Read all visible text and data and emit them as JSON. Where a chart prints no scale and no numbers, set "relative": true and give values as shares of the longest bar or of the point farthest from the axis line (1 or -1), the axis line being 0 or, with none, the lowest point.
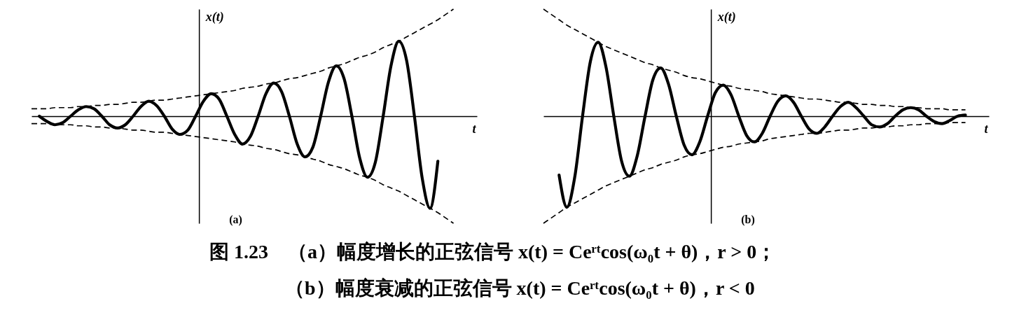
{
  "chart_data": [
    {
      "type": "line",
      "title": "(a)",
      "xlabel": "t",
      "ylabel": "x(t)",
      "relative": true,
      "categories": [
        null,
        null,
        null,
        null,
        null,
        null,
        null,
        null,
        null,
        null,
        null,
        null,
        null,
        null,
        null,
        null,
        null,
        null,
        null,
        null,
        null,
        null,
        null,
        null,
        null,
        null,
        null,
        null,
        null,
        null,
        null,
        null,
        null,
        null,
        null,
        null,
        null,
        null,
        null,
        null,
        null,
        null,
        null,
        null,
        null,
        null,
        null,
        null,
        null,
        null,
        null,
        null,
        null,
        null,
        null,
        null,
        null,
        null
      ],
      "series": [
        {
          "color": "#000000",
          "line_style": "solid",
          "values": [
            null,
            0,
            -0.05,
            -0.08,
            -0.06,
            0,
            0.06,
            0.09,
            0.07,
            0,
            -0.08,
            -0.11,
            -0.08,
            0,
            0.09,
            0.14,
            0.1,
            0,
            -0.12,
            -0.17,
            -0.13,
            0,
            0.14,
            0.21,
            0.16,
            0,
            -0.17,
            -0.26,
            -0.19,
            0,
            0.21,
            0.31,
            0.23,
            0,
            -0.26,
            -0.38,
            -0.29,
            0,
            0.32,
            0.47,
            0.35,
            0,
            -0.39,
            -0.57,
            -0.43,
            0,
            0.47,
            0.7,
            0.52,
            0,
            -0.58,
            -0.86,
            -0.42,
            null,
            null,
            null,
            null,
            null
          ]
        },
        {
          "color": "#000000",
          "line_style": "dashed",
          "values": [
            0.07,
            0.07,
            0.07,
            0.08,
            0.08,
            0.08,
            0.09,
            0.09,
            0.1,
            0.1,
            0.11,
            0.11,
            0.12,
            0.13,
            0.13,
            0.14,
            0.15,
            0.15,
            0.16,
            0.17,
            0.18,
            0.19,
            0.2,
            0.21,
            0.22,
            0.23,
            0.24,
            0.26,
            0.27,
            0.28,
            0.3,
            0.31,
            0.33,
            0.35,
            0.36,
            0.38,
            0.4,
            0.42,
            0.45,
            0.47,
            0.49,
            0.52,
            0.55,
            0.57,
            0.6,
            0.64,
            0.67,
            0.7,
            0.74,
            0.78,
            0.82,
            0.86,
            0.9,
            0.95,
            1,
            null,
            null,
            null
          ]
        },
        {
          "color": "#000000",
          "line_style": "dashed",
          "values": [
            -0.07,
            -0.07,
            -0.07,
            -0.08,
            -0.08,
            -0.08,
            -0.09,
            -0.09,
            -0.1,
            -0.1,
            -0.11,
            -0.11,
            -0.12,
            -0.13,
            -0.13,
            -0.14,
            -0.15,
            -0.15,
            -0.16,
            -0.17,
            -0.18,
            -0.19,
            -0.2,
            -0.21,
            -0.22,
            -0.23,
            -0.24,
            -0.26,
            -0.27,
            -0.28,
            -0.3,
            -0.31,
            -0.33,
            -0.35,
            -0.36,
            -0.38,
            -0.4,
            -0.42,
            -0.45,
            -0.47,
            -0.49,
            -0.52,
            -0.55,
            -0.57,
            -0.6,
            -0.64,
            -0.67,
            -0.7,
            -0.74,
            -0.78,
            -0.82,
            -0.86,
            -0.9,
            -0.95,
            -1,
            null,
            null,
            null
          ]
        }
      ]
    },
    {
      "type": "line",
      "title": "(b)",
      "xlabel": "t",
      "ylabel": "x(t)",
      "relative": true,
      "categories": [
        null,
        null,
        null,
        null,
        null,
        null,
        null,
        null,
        null,
        null,
        null,
        null,
        null,
        null,
        null,
        null,
        null,
        null,
        null,
        null,
        null,
        null,
        null,
        null,
        null,
        null,
        null,
        null,
        null,
        null,
        null,
        null,
        null,
        null,
        null,
        null,
        null,
        null,
        null,
        null,
        null,
        null,
        null,
        null,
        null,
        null,
        null,
        null,
        null,
        null,
        null,
        null,
        null,
        null,
        null,
        null,
        null,
        null
      ],
      "series": [
        {
          "color": "#000000",
          "line_style": "solid",
          "values": [
            null,
            null,
            -0.55,
            -0.85,
            -0.57,
            0,
            0.51,
            0.69,
            0.46,
            0,
            -0.42,
            -0.56,
            -0.37,
            0,
            0.34,
            0.45,
            0.3,
            0,
            -0.27,
            -0.36,
            -0.24,
            0,
            0.22,
            0.29,
            0.2,
            0,
            -0.18,
            -0.24,
            -0.16,
            0,
            0.14,
            0.19,
            0.13,
            0,
            -0.12,
            -0.16,
            -0.1,
            0,
            0.09,
            0.13,
            0.08,
            0,
            -0.08,
            -0.1,
            -0.07,
            0,
            0.06,
            0.08,
            0.06,
            0,
            -0.05,
            -0.07,
            -0.04,
            0,
            0.01,
            null,
            null,
            null
          ]
        },
        {
          "color": "#000000",
          "line_style": "dashed",
          "values": [
            1,
            0.95,
            0.9,
            0.85,
            0.81,
            0.77,
            0.73,
            0.69,
            0.65,
            0.62,
            0.59,
            0.56,
            0.53,
            0.5,
            0.48,
            0.45,
            0.43,
            0.41,
            0.38,
            0.36,
            0.35,
            0.33,
            0.31,
            0.29,
            0.28,
            0.26,
            0.25,
            0.24,
            0.23,
            0.21,
            0.2,
            0.19,
            0.18,
            0.17,
            0.16,
            0.16,
            0.15,
            0.14,
            0.13,
            0.13,
            0.12,
            0.11,
            0.11,
            0.1,
            0.1,
            0.09,
            0.09,
            0.08,
            0.08,
            0.07,
            0.07,
            0.07,
            0.06,
            0.06,
            0.06,
            null,
            null,
            null
          ]
        },
        {
          "color": "#000000",
          "line_style": "dashed",
          "values": [
            -1,
            -0.95,
            -0.9,
            -0.85,
            -0.81,
            -0.77,
            -0.73,
            -0.69,
            -0.65,
            -0.62,
            -0.59,
            -0.56,
            -0.53,
            -0.5,
            -0.48,
            -0.45,
            -0.43,
            -0.41,
            -0.38,
            -0.36,
            -0.35,
            -0.33,
            -0.31,
            -0.29,
            -0.28,
            -0.26,
            -0.25,
            -0.24,
            -0.23,
            -0.21,
            -0.2,
            -0.19,
            -0.18,
            -0.17,
            -0.16,
            -0.16,
            -0.15,
            -0.14,
            -0.13,
            -0.13,
            -0.12,
            -0.11,
            -0.11,
            -0.1,
            -0.1,
            -0.09,
            -0.09,
            -0.08,
            -0.08,
            -0.07,
            -0.07,
            -0.07,
            -0.06,
            -0.06,
            -0.06,
            null,
            null,
            null
          ]
        }
      ]
    },
    {
      "type": "other",
      "annotations": [
        "图 1.23　（a）幅度增长的正弦信号 x(t) = Ceʳᵗcos(ω₀t + θ)，r > 0；",
        "（b）幅度衰减的正弦信号 x(t) = Ceʳᵗcos(ω₀t + θ)，r < 0"
      ]
    }
  ]
}
